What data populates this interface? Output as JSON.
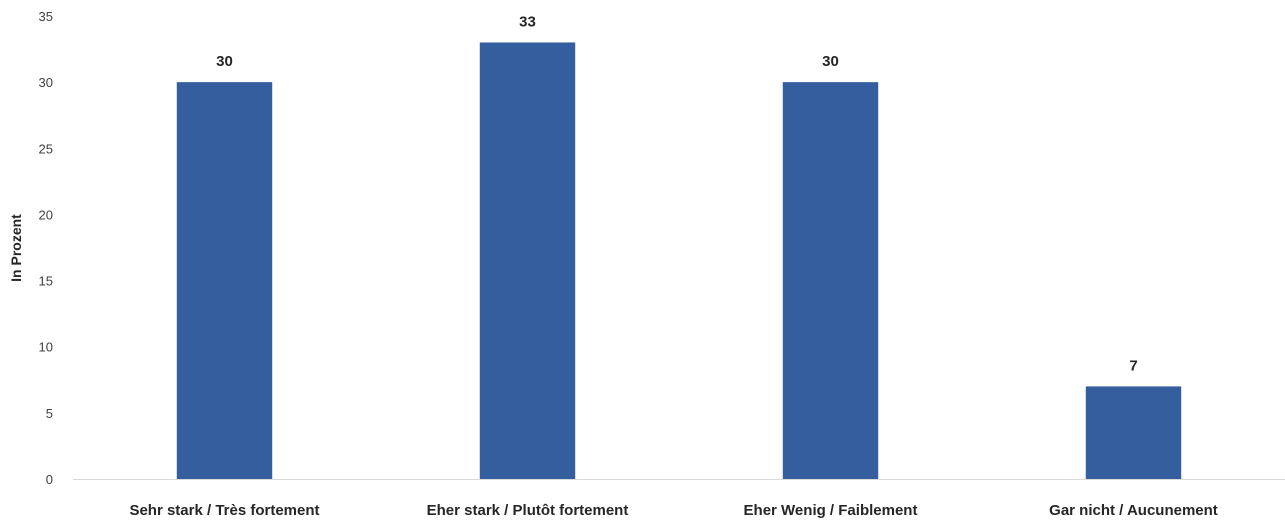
{
  "chart_data": {
    "type": "bar",
    "categories": [
      "Sehr stark / Très fortement",
      "Eher stark / Plutôt fortement",
      "Eher Wenig / Faiblement",
      "Gar nicht / Aucunement"
    ],
    "values": [
      30,
      33,
      30,
      7
    ],
    "data_labels": [
      "30",
      "33",
      "30",
      "7"
    ],
    "title": "",
    "xlabel": "",
    "ylabel": "In Prozent",
    "ylim": [
      0,
      35
    ],
    "yticks": [
      0,
      5,
      10,
      15,
      20,
      25,
      30,
      35
    ],
    "grid": false,
    "legend": "none",
    "bar_color": "#355E9E",
    "axis_color": "#D9D9D9"
  }
}
